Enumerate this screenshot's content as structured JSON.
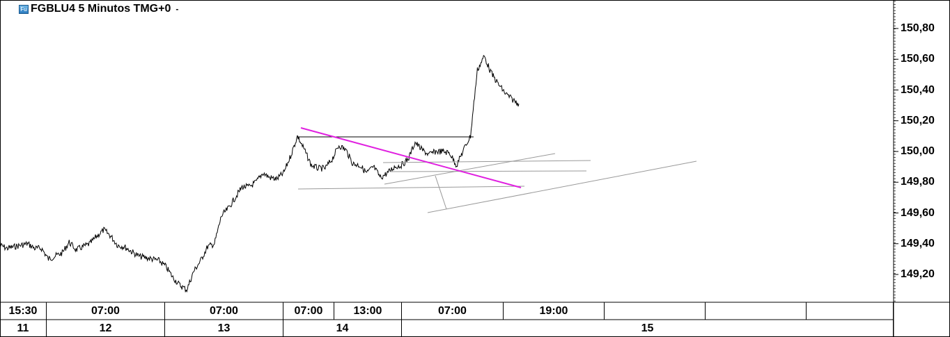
{
  "header": {
    "icon": "futures-icon",
    "icon_text": "Fu",
    "title": "FGBLU4 5 Minutos TMG+0",
    "dropdown": "-"
  },
  "colors": {
    "price": "#000000",
    "trendline": "#e020e0",
    "drawing": "#999999"
  },
  "chart_data": {
    "type": "line",
    "title": "FGBLU4 5 Minutos TMG+0",
    "ylim": [
      149.02,
      150.96
    ],
    "yticks": [
      "150,80",
      "150,60",
      "150,40",
      "150,20",
      "150,00",
      "149,80",
      "149,60",
      "149,40",
      "149,20"
    ],
    "ytick_values": [
      150.8,
      150.6,
      150.4,
      150.2,
      150.0,
      149.8,
      149.6,
      149.4,
      149.2
    ],
    "xticks_time": [
      "15:30",
      "07:00",
      "07:00",
      "07:00",
      "13:00",
      "07:00",
      "19:00",
      "",
      "",
      "",
      ""
    ],
    "xticks_day": [
      "11",
      "12",
      "13",
      "14",
      "15"
    ],
    "grid": false,
    "series": [
      {
        "values": [
          149.39,
          149.37,
          149.38,
          149.39,
          149.4,
          149.37,
          149.37,
          149.3,
          149.32,
          149.34,
          149.41,
          149.36,
          149.38,
          149.4,
          149.45,
          149.49,
          149.45,
          149.39,
          149.38,
          149.35,
          149.32,
          149.31,
          149.3,
          149.29,
          149.25,
          149.18,
          149.13,
          149.1,
          149.22,
          149.29,
          149.38,
          149.4,
          149.58,
          149.63,
          149.7,
          149.77,
          149.77,
          149.8,
          149.86,
          149.83,
          149.82,
          149.86,
          149.97,
          150.1,
          150.01,
          149.91,
          149.89,
          149.89,
          149.95,
          150.04,
          150.01,
          149.92,
          149.91,
          149.86,
          149.9,
          149.83,
          149.86,
          149.9,
          149.91,
          149.95,
          150.06,
          150.01,
          149.98,
          150.0,
          150.0,
          149.99,
          149.91,
          150.01,
          150.1,
          150.53,
          150.62,
          150.51,
          150.44,
          150.38,
          150.34,
          150.31
        ]
      }
    ]
  }
}
